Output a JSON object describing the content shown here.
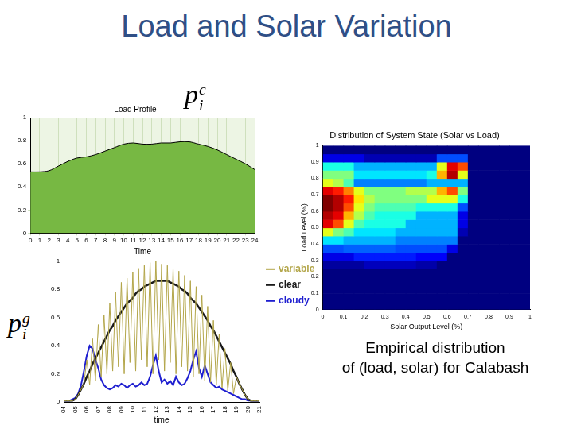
{
  "title": "Load and Solar Variation",
  "caption": [
    "Empirical distribution",
    "of (load, solar) for Calabash"
  ],
  "chart_data": [
    {
      "type": "area",
      "title": "Load Profile",
      "x_label": "Time",
      "symbol": {
        "base": "p",
        "sub": "i",
        "sup": "c"
      },
      "x": [
        0,
        1,
        2,
        3,
        4,
        5,
        6,
        7,
        8,
        9,
        10,
        11,
        12,
        13,
        14,
        15,
        16,
        17,
        18,
        19,
        20,
        21,
        22,
        23,
        24
      ],
      "values": [
        0.53,
        0.53,
        0.54,
        0.58,
        0.62,
        0.65,
        0.66,
        0.68,
        0.71,
        0.74,
        0.77,
        0.78,
        0.77,
        0.77,
        0.78,
        0.78,
        0.79,
        0.79,
        0.77,
        0.75,
        0.72,
        0.68,
        0.64,
        0.6,
        0.55
      ],
      "color": "#77b843",
      "xlim": [
        0,
        24
      ],
      "xticks": [
        0,
        1,
        2,
        3,
        4,
        5,
        6,
        7,
        8,
        9,
        10,
        11,
        12,
        13,
        14,
        15,
        16,
        17,
        18,
        19,
        20,
        21,
        22,
        23,
        24
      ],
      "ylim": [
        0,
        1
      ],
      "yticks": [
        0,
        0.2,
        0.4,
        0.6,
        0.8,
        1
      ],
      "grid": true
    },
    {
      "type": "heatmap",
      "title": "Distribution of System State (Solar vs Load)",
      "x_label": "Solar Output Level (%)",
      "y_label": "Load Level (%)",
      "x": [
        0.025,
        0.075,
        0.125,
        0.175,
        0.225,
        0.275,
        0.325,
        0.375,
        0.425,
        0.475,
        0.525,
        0.575,
        0.625,
        0.675,
        0.725,
        0.775,
        0.825,
        0.875,
        0.925,
        0.975
      ],
      "y": [
        0.025,
        0.075,
        0.125,
        0.175,
        0.225,
        0.275,
        0.325,
        0.375,
        0.425,
        0.475,
        0.525,
        0.575,
        0.625,
        0.675,
        0.725,
        0.775,
        0.825,
        0.875,
        0.925,
        0.975
      ],
      "z": [
        [
          0,
          0,
          0,
          0,
          0,
          0,
          0,
          0,
          0,
          0,
          0,
          0,
          0,
          0,
          0,
          0,
          0,
          0,
          0,
          0
        ],
        [
          0,
          0,
          0,
          0,
          0,
          0,
          0,
          0,
          0,
          0,
          0,
          0,
          0,
          0,
          0,
          0,
          0,
          0,
          0,
          0
        ],
        [
          0,
          0,
          0,
          0,
          0,
          0,
          0,
          0,
          0,
          0,
          0,
          0,
          0,
          0,
          0,
          0,
          0,
          0,
          0,
          0
        ],
        [
          0,
          0,
          0,
          0,
          0,
          0,
          0,
          0,
          0,
          0,
          0,
          0,
          0,
          0,
          0,
          0,
          0,
          0,
          0,
          0
        ],
        [
          0,
          0,
          0,
          0,
          0,
          0,
          0,
          0,
          0,
          0,
          0,
          0,
          0,
          0,
          0,
          0,
          0,
          0,
          0,
          0
        ],
        [
          0.03,
          0.03,
          0.03,
          0.03,
          0.06,
          0.06,
          0.06,
          0.06,
          0.06,
          0.04,
          0.04,
          0,
          0,
          0,
          0,
          0,
          0,
          0,
          0,
          0
        ],
        [
          0.1,
          0.1,
          0.1,
          0.15,
          0.15,
          0.15,
          0.15,
          0.15,
          0.15,
          0.12,
          0.12,
          0.12,
          0,
          0,
          0,
          0,
          0,
          0,
          0,
          0
        ],
        [
          0.2,
          0.2,
          0.22,
          0.22,
          0.22,
          0.22,
          0.22,
          0.2,
          0.2,
          0.2,
          0.2,
          0.2,
          0.1,
          0,
          0,
          0,
          0,
          0,
          0,
          0
        ],
        [
          0.35,
          0.35,
          0.3,
          0.3,
          0.3,
          0.3,
          0.3,
          0.25,
          0.25,
          0.25,
          0.25,
          0.25,
          0.25,
          0,
          0,
          0,
          0,
          0,
          0,
          0
        ],
        [
          0.6,
          0.5,
          0.45,
          0.35,
          0.35,
          0.35,
          0.35,
          0.3,
          0.3,
          0.3,
          0.3,
          0.3,
          0.3,
          0.05,
          0,
          0,
          0,
          0,
          0,
          0
        ],
        [
          0.9,
          0.8,
          0.6,
          0.45,
          0.4,
          0.4,
          0.4,
          0.4,
          0.3,
          0.3,
          0.3,
          0.3,
          0.3,
          0.1,
          0,
          0,
          0,
          0,
          0,
          0
        ],
        [
          0.95,
          0.9,
          0.7,
          0.55,
          0.45,
          0.4,
          0.4,
          0.4,
          0.4,
          0.3,
          0.3,
          0.3,
          0.3,
          0.1,
          0,
          0,
          0,
          0,
          0,
          0
        ],
        [
          1,
          0.95,
          0.8,
          0.6,
          0.5,
          0.45,
          0.45,
          0.45,
          0.45,
          0.4,
          0.4,
          0.4,
          0.4,
          0.2,
          0,
          0,
          0,
          0,
          0,
          0
        ],
        [
          1,
          0.95,
          0.85,
          0.65,
          0.55,
          0.5,
          0.5,
          0.5,
          0.5,
          0.5,
          0.6,
          0.6,
          0.6,
          0.4,
          0,
          0,
          0,
          0,
          0,
          0
        ],
        [
          0.9,
          0.85,
          0.75,
          0.6,
          0.5,
          0.5,
          0.5,
          0.5,
          0.55,
          0.55,
          0.55,
          0.7,
          0.8,
          0.5,
          0,
          0,
          0,
          0,
          0,
          0
        ],
        [
          0.6,
          0.55,
          0.45,
          0.25,
          0.25,
          0.25,
          0.25,
          0.25,
          0.25,
          0.25,
          0.3,
          0.3,
          0.3,
          0.3,
          0,
          0,
          0,
          0,
          0,
          0
        ],
        [
          0.5,
          0.5,
          0.5,
          0.35,
          0.35,
          0.35,
          0.35,
          0.35,
          0.35,
          0.35,
          0.4,
          0.7,
          0.95,
          0.6,
          0,
          0,
          0,
          0,
          0,
          0
        ],
        [
          0.4,
          0.4,
          0.4,
          0.3,
          0.3,
          0.3,
          0.3,
          0.3,
          0.3,
          0.3,
          0.3,
          0.6,
          0.9,
          0.8,
          0,
          0,
          0,
          0,
          0,
          0
        ],
        [
          0.1,
          0.1,
          0.1,
          0.1,
          0.05,
          0.05,
          0.05,
          0.05,
          0.05,
          0.05,
          0.05,
          0.2,
          0.2,
          0.2,
          0,
          0,
          0,
          0,
          0,
          0
        ],
        [
          0,
          0,
          0,
          0,
          0,
          0,
          0,
          0,
          0,
          0,
          0,
          0,
          0,
          0,
          0,
          0,
          0,
          0,
          0,
          0
        ]
      ],
      "zlim": [
        0,
        1
      ],
      "xlim": [
        0,
        1
      ],
      "xticks": [
        0,
        0.1,
        0.2,
        0.3,
        0.4,
        0.5,
        0.6,
        0.7,
        0.8,
        0.9,
        1
      ],
      "ylim": [
        0,
        1
      ],
      "yticks": [
        0,
        0.1,
        0.2,
        0.3,
        0.4,
        0.5,
        0.6,
        0.7,
        0.8,
        0.9,
        1
      ],
      "grid": false
    },
    {
      "type": "line",
      "x_label": "time",
      "symbol": {
        "base": "p",
        "sub": "i",
        "sup": "g"
      },
      "x": [
        4,
        4.25,
        4.5,
        4.75,
        5,
        5.25,
        5.5,
        5.75,
        6,
        6.25,
        6.5,
        6.75,
        7,
        7.25,
        7.5,
        7.75,
        8,
        8.25,
        8.5,
        8.75,
        9,
        9.25,
        9.5,
        9.75,
        10,
        10.25,
        10.5,
        10.75,
        11,
        11.25,
        11.5,
        11.75,
        12,
        12.25,
        12.5,
        12.75,
        13,
        13.25,
        13.5,
        13.75,
        14,
        14.25,
        14.5,
        14.75,
        15,
        15.25,
        15.5,
        15.75,
        16,
        16.25,
        16.5,
        16.75,
        17,
        17.25,
        17.5,
        17.75,
        18,
        18.25,
        18.5,
        18.75,
        19,
        19.25,
        19.5,
        19.75,
        20,
        20.25,
        20.5,
        20.75,
        21
      ],
      "series": [
        {
          "name": "variable",
          "color": "#b3a64a",
          "values": [
            0.01,
            0.01,
            0.01,
            0.01,
            0.02,
            0.05,
            0.09,
            0.13,
            0.3,
            0.12,
            0.45,
            0.15,
            0.55,
            0.18,
            0.62,
            0.2,
            0.7,
            0.22,
            0.78,
            0.25,
            0.85,
            0.2,
            0.88,
            0.28,
            0.92,
            0.22,
            0.95,
            0.3,
            0.97,
            0.25,
            0.99,
            0.2,
            1,
            0.3,
            0.98,
            0.22,
            0.97,
            0.28,
            0.95,
            0.2,
            0.93,
            0.25,
            0.9,
            0.22,
            0.86,
            0.18,
            0.82,
            0.2,
            0.76,
            0.15,
            0.68,
            0.14,
            0.58,
            0.12,
            0.48,
            0.1,
            0.38,
            0.08,
            0.28,
            0.06,
            0.18,
            0.13,
            0.09,
            0.05,
            0.02,
            0.01,
            0.01,
            0.01,
            0.01
          ]
        },
        {
          "name": "clear",
          "color": "#1a1a1a",
          "values": [
            0.01,
            0.01,
            0.01,
            0.01,
            0.02,
            0.05,
            0.09,
            0.13,
            0.18,
            0.22,
            0.27,
            0.31,
            0.35,
            0.39,
            0.43,
            0.47,
            0.51,
            0.54,
            0.58,
            0.61,
            0.64,
            0.67,
            0.7,
            0.72,
            0.74,
            0.77,
            0.79,
            0.8,
            0.82,
            0.83,
            0.84,
            0.85,
            0.86,
            0.86,
            0.86,
            0.86,
            0.86,
            0.85,
            0.84,
            0.83,
            0.82,
            0.8,
            0.79,
            0.77,
            0.74,
            0.72,
            0.7,
            0.67,
            0.64,
            0.61,
            0.58,
            0.54,
            0.51,
            0.47,
            0.43,
            0.39,
            0.35,
            0.31,
            0.27,
            0.22,
            0.18,
            0.13,
            0.09,
            0.05,
            0.02,
            0.01,
            0.01,
            0.01,
            0.01
          ]
        },
        {
          "name": "cloudy",
          "color": "#1f1fd0",
          "values": [
            0.01,
            0.01,
            0.01,
            0.02,
            0.03,
            0.06,
            0.12,
            0.22,
            0.33,
            0.4,
            0.38,
            0.3,
            0.24,
            0.16,
            0.12,
            0.1,
            0.09,
            0.1,
            0.12,
            0.11,
            0.13,
            0.12,
            0.1,
            0.12,
            0.13,
            0.11,
            0.12,
            0.14,
            0.12,
            0.13,
            0.18,
            0.26,
            0.33,
            0.22,
            0.14,
            0.16,
            0.13,
            0.15,
            0.12,
            0.18,
            0.14,
            0.12,
            0.13,
            0.17,
            0.22,
            0.3,
            0.36,
            0.24,
            0.18,
            0.26,
            0.2,
            0.14,
            0.12,
            0.1,
            0.11,
            0.09,
            0.08,
            0.07,
            0.06,
            0.05,
            0.04,
            0.03,
            0.02,
            0.02,
            0.01,
            0.01,
            0.01,
            0.01,
            0.01
          ]
        }
      ],
      "xlim": [
        4,
        21
      ],
      "xticks": [
        {
          "value": 4,
          "label": "04"
        },
        {
          "value": 5,
          "label": "05"
        },
        {
          "value": 6,
          "label": "06"
        },
        {
          "value": 7,
          "label": "07"
        },
        {
          "value": 8,
          "label": "08"
        },
        {
          "value": 9,
          "label": "09"
        },
        10,
        11,
        12,
        13,
        14,
        15,
        16,
        17,
        18,
        19,
        20,
        21
      ],
      "ylim": [
        0,
        1
      ],
      "yticks": [
        0,
        0.2,
        0.4,
        0.6,
        0.8,
        1
      ],
      "grid": false,
      "legend": "upper right"
    }
  ]
}
